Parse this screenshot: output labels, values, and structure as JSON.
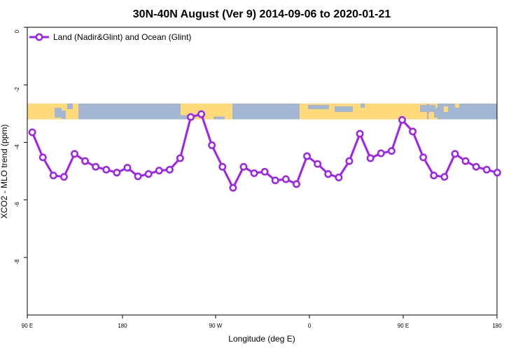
{
  "chart_data": {
    "type": "line",
    "title": "30N-40N August (Ver 9)   2014-09-06 to 2020-01-21",
    "xlabel": "Longitude (deg E)",
    "ylabel": "XCO2 - MLO trend (ppm)",
    "x_tick_labels": [
      "90 E",
      "180",
      "90 W",
      "0",
      "90 E",
      "180"
    ],
    "y_tick_labels": [
      "0",
      "-2",
      "-4",
      "-6",
      "-8"
    ],
    "y_ticks": [
      0,
      -2,
      -4,
      -6,
      -8
    ],
    "ylim": [
      -10,
      0
    ],
    "xlim": [
      90,
      450
    ],
    "legend": {
      "label": "Land (Nadir&Glint) and Ocean (Glint)",
      "position": "top-left"
    },
    "colors": {
      "series": "#a020f0",
      "land": "#ffd97a",
      "ocean": "#a3b6d2",
      "axis": "#000000"
    },
    "map_band": {
      "y_top": -2.65,
      "y_bottom": -3.2
    },
    "series": [
      {
        "name": "Land (Nadir&Glint) and Ocean (Glint)",
        "x": [
          93.8,
          101.9,
          110.0,
          118.1,
          126.2,
          134.3,
          142.4,
          150.5,
          158.6,
          166.7,
          174.8,
          182.9,
          191.0,
          199.1,
          207.2,
          215.3,
          223.4,
          231.5,
          239.6,
          247.7,
          255.8,
          263.9,
          272.0,
          280.1,
          288.2,
          296.3,
          304.4,
          312.5,
          320.6,
          328.7,
          336.8,
          344.9,
          353.0,
          361.1,
          369.2,
          377.3,
          385.4,
          393.5,
          401.6,
          409.7,
          417.8,
          425.9,
          434.0,
          442.1,
          450.2
        ],
        "y": [
          -3.65,
          -4.52,
          -5.15,
          -5.2,
          -4.4,
          -4.65,
          -4.85,
          -4.95,
          -5.05,
          -4.88,
          -5.18,
          -5.1,
          -4.98,
          -4.95,
          -4.55,
          -3.12,
          -3.02,
          -4.1,
          -4.85,
          -5.58,
          -4.85,
          -5.07,
          -5.02,
          -5.32,
          -5.28,
          -5.45,
          -4.48,
          -4.75,
          -5.1,
          -5.22,
          -4.65,
          -3.7,
          -4.55,
          -4.38,
          -4.3,
          -3.22,
          -3.62,
          -4.52,
          -5.15,
          -5.2,
          -4.4,
          -4.65,
          -4.85,
          -4.95,
          -5.05
        ]
      }
    ]
  }
}
